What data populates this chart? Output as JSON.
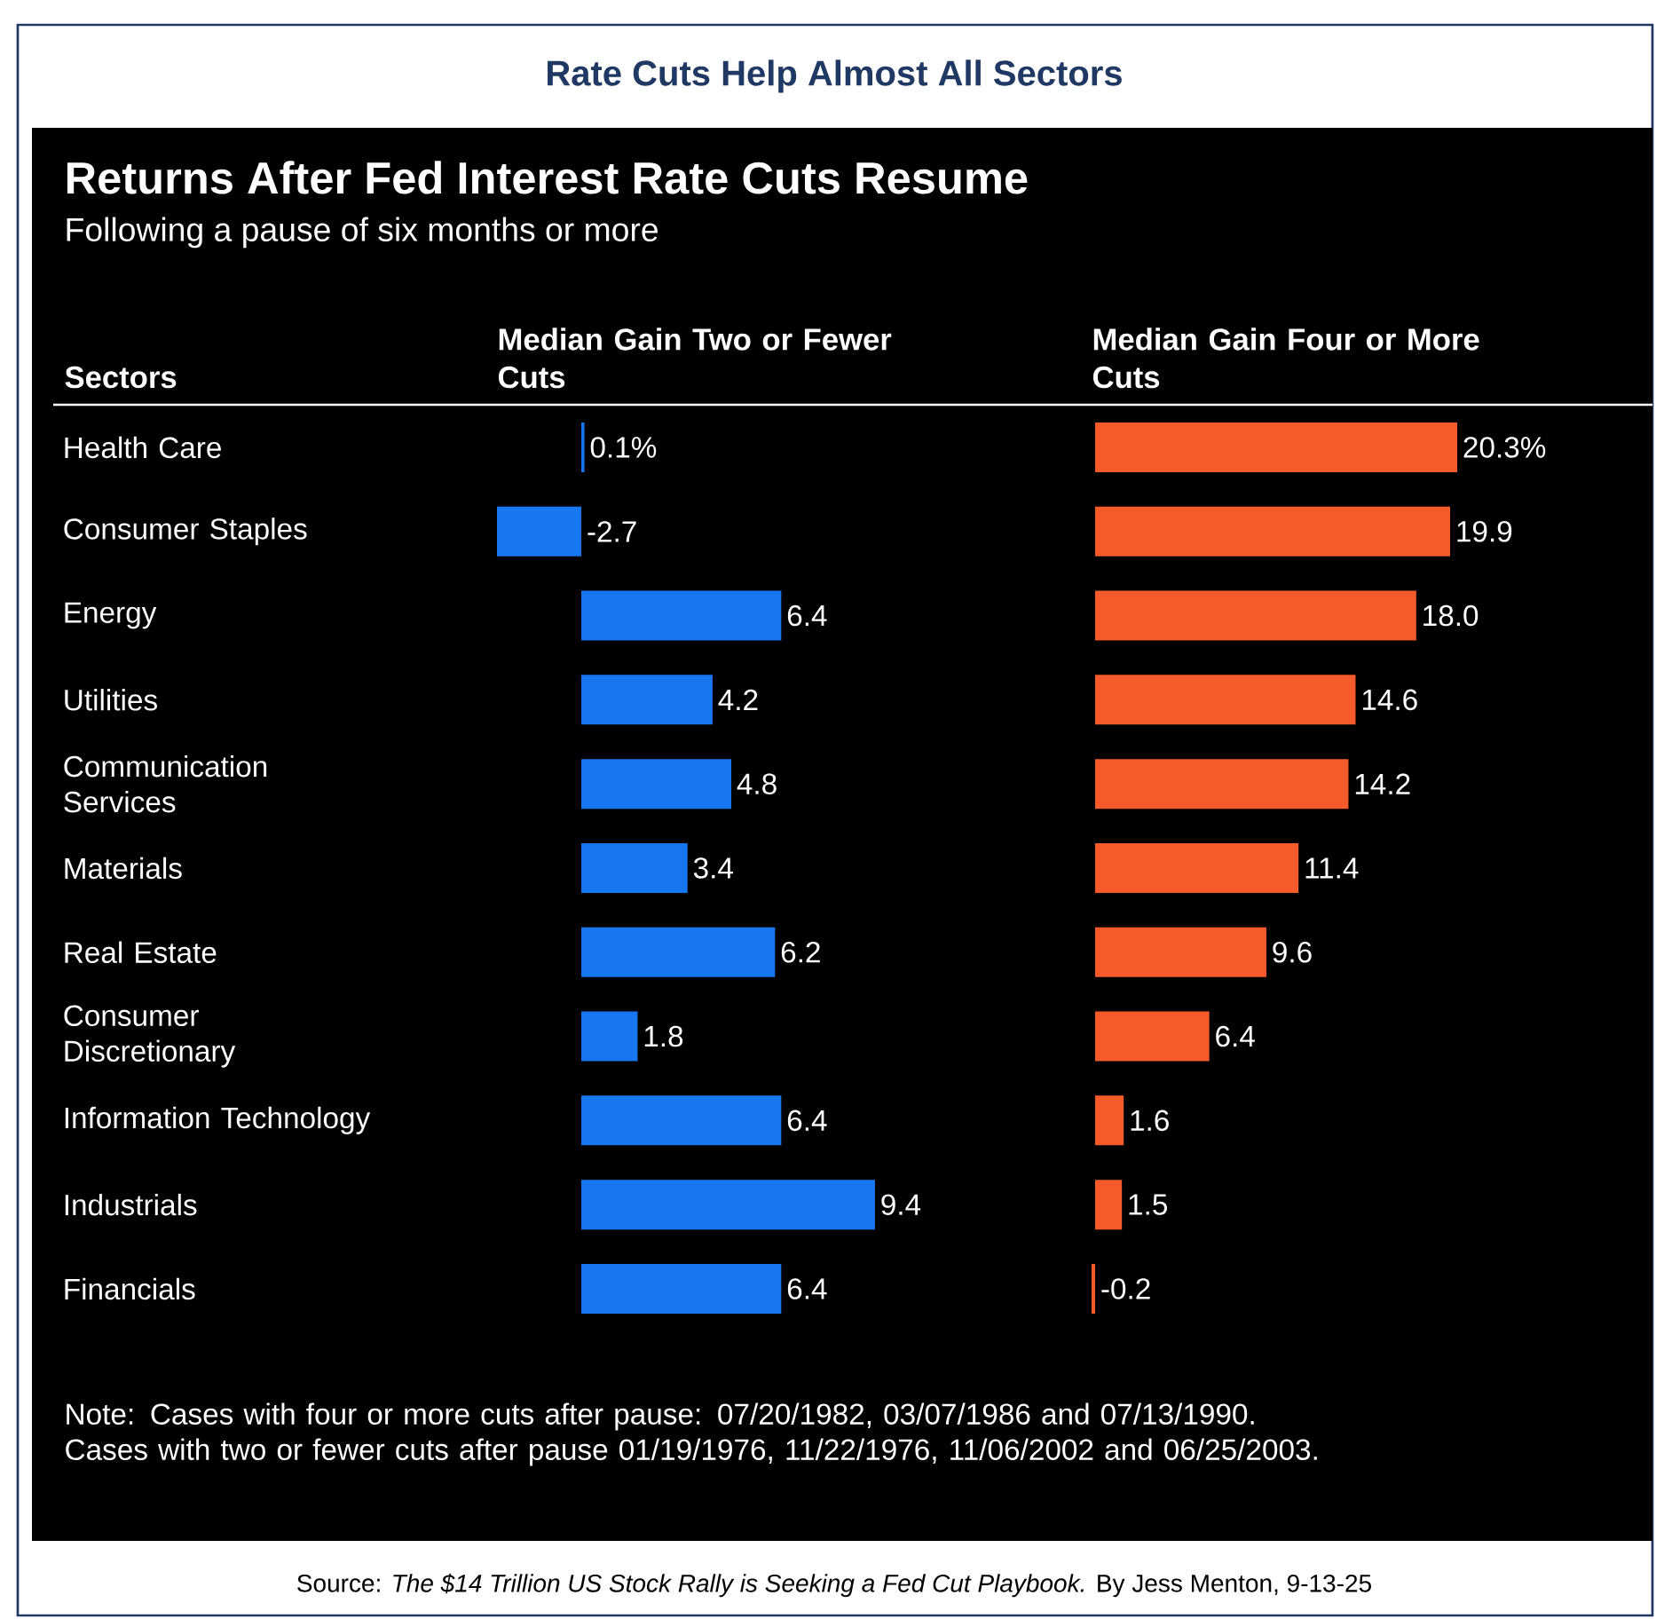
{
  "chart_data": [
    {
      "type": "bar",
      "orientation": "horizontal",
      "title": "Returns After Fed Interest Rate Cuts Resume",
      "subtitle": "Following a pause of six months or more",
      "xlabel": "Median Gain Two or Fewer Cuts",
      "ylabel": "Sectors",
      "categories": [
        "Health Care",
        "Consumer Staples",
        "Energy",
        "Utilities",
        "Communication Services",
        "Materials",
        "Real Estate",
        "Consumer Discretionary",
        "Information Technology",
        "Industrials",
        "Financials"
      ],
      "values": [
        0.1,
        -2.7,
        6.4,
        4.2,
        4.8,
        3.4,
        6.2,
        1.8,
        6.4,
        9.4,
        6.4
      ],
      "value_labels": [
        "0.1%",
        "-2.7",
        "6.4",
        "4.2",
        "4.8",
        "3.4",
        "6.2",
        "1.8",
        "6.4",
        "9.4",
        "6.4"
      ],
      "color": "#1677f0",
      "tick_labels": "y",
      "annotations": [
        "Rate Cuts Help Almost All Sectors",
        "Note: Cases with four or more cuts after pause: 07/20/1982, 03/07/1986 and 07/13/1990. Cases with two or fewer cuts after pause 01/19/1976, 11/22/1976, 11/06/2002 and 06/25/2003.",
        "Source: *The $14 Trillion US Stock Rally is Seeking a Fed Cut Playbook.* By Jess Menton, 9-13-25"
      ]
    },
    {
      "type": "bar",
      "orientation": "horizontal",
      "xlabel": "Median Gain Four or More Cuts",
      "categories": [
        null,
        null,
        null,
        null,
        null,
        null,
        null,
        null,
        null,
        null,
        null
      ],
      "values": [
        20.3,
        19.9,
        18.0,
        14.6,
        14.2,
        11.4,
        9.6,
        6.4,
        1.6,
        1.5,
        -0.2
      ],
      "value_labels": [
        "20.3%",
        "19.9",
        "18.0",
        "14.6",
        "14.2",
        "11.4",
        "9.6",
        "6.4",
        "1.6",
        "1.5",
        "-0.2"
      ],
      "color": "#f55a2a"
    }
  ]
}
